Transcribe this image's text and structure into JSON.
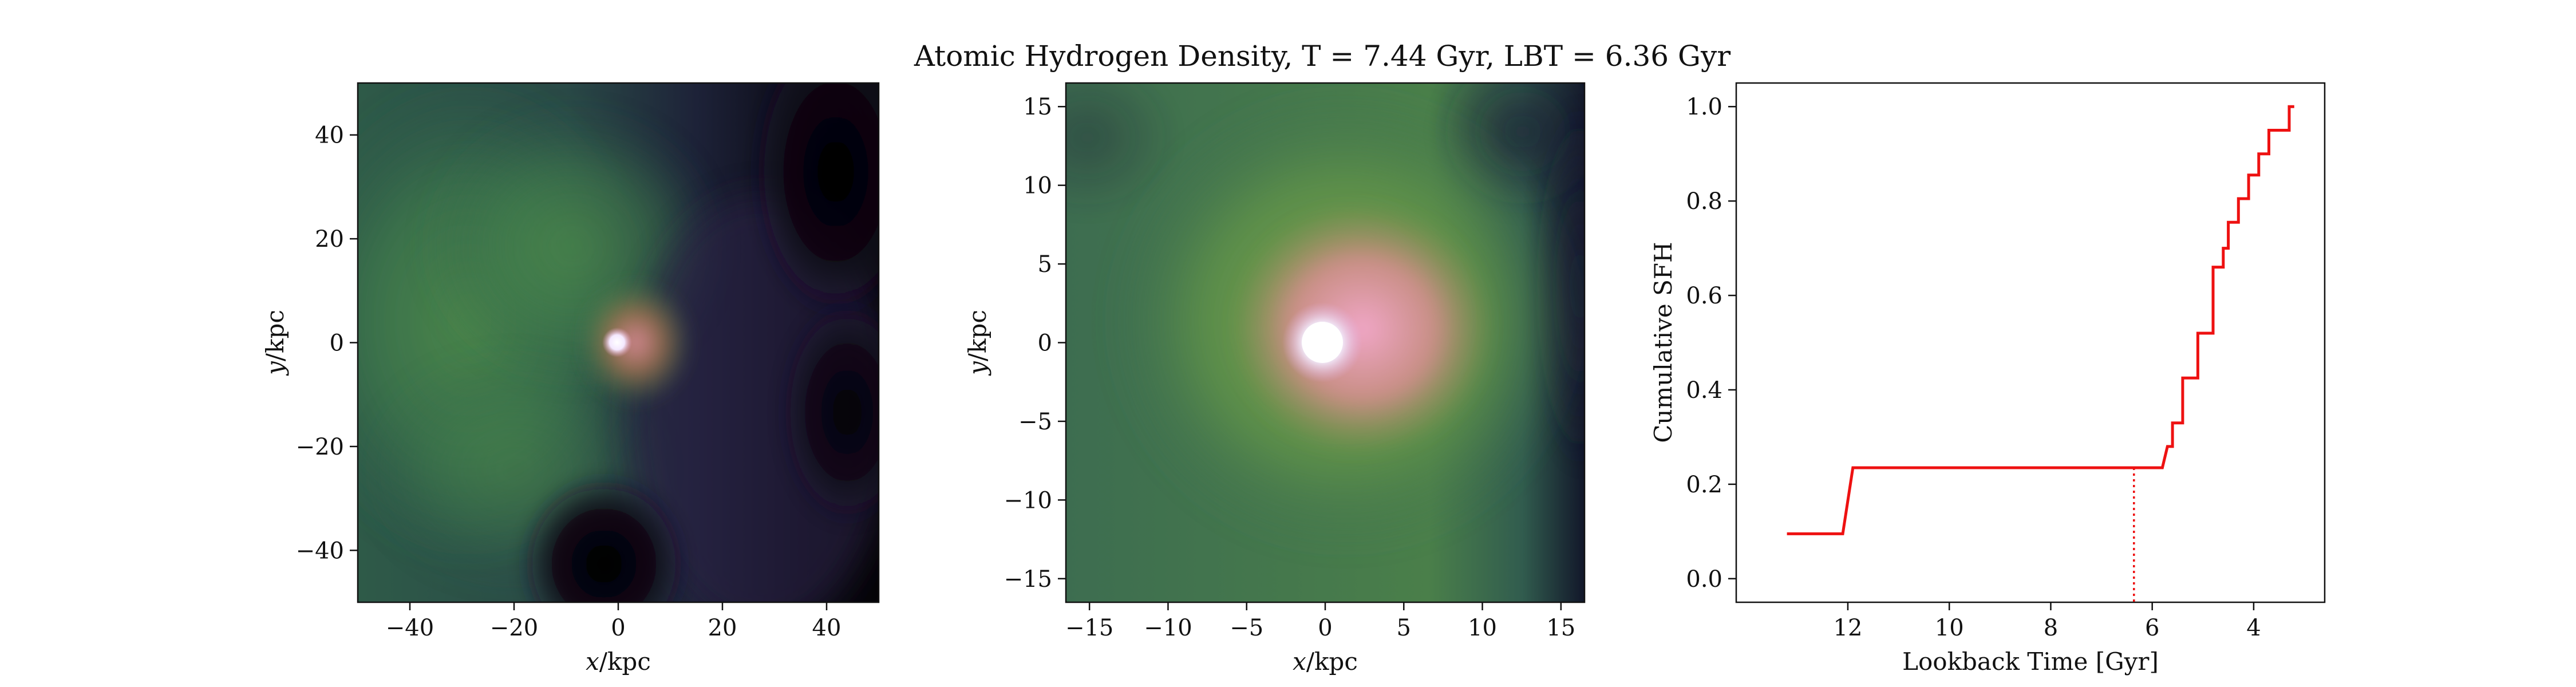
{
  "title": "Atomic Hydrogen Density, T = 7.44 Gyr, LBT = 6.36 Gyr",
  "colors": {
    "line": "#ee1111",
    "axis": "#111111"
  },
  "chart_data": [
    {
      "type": "heatmap",
      "panel": "left",
      "xlabel": "x/kpc",
      "ylabel": "y/kpc",
      "xlim": [
        -50,
        50
      ],
      "ylim": [
        -50,
        50
      ],
      "xticks": [
        -40,
        -20,
        0,
        20,
        40
      ],
      "yticks": [
        -40,
        -20,
        0,
        20,
        40
      ],
      "xtick_labels": [
        "−40",
        "−20",
        "0",
        "20",
        "40"
      ],
      "ytick_labels": [
        "−40",
        "−20",
        "0",
        "20",
        "40"
      ],
      "colormap": "cubehelix-like (black → purple → green → pink → white)",
      "features": [
        "bright compact core near (0, 0)",
        "green gas extending to the left",
        "dark void in lower-center and upper-right"
      ]
    },
    {
      "type": "heatmap",
      "panel": "middle",
      "xlabel": "x/kpc",
      "ylabel": "y/kpc",
      "xlim": [
        -16.5,
        16.5
      ],
      "ylim": [
        -16.5,
        16.5
      ],
      "xticks": [
        -15,
        -10,
        -5,
        0,
        5,
        10,
        15
      ],
      "yticks": [
        -15,
        -10,
        -5,
        0,
        5,
        10,
        15
      ],
      "xtick_labels": [
        "−15",
        "−10",
        "−5",
        "0",
        "5",
        "10",
        "15"
      ],
      "ytick_labels": [
        "−15",
        "−10",
        "−5",
        "0",
        "5",
        "10",
        "15"
      ],
      "colormap": "cubehelix-like (black → purple → green → pink → white)",
      "features": [
        "bright white core at (0, 0)",
        "pink halo",
        "green envelope"
      ]
    },
    {
      "type": "line",
      "panel": "right",
      "xlabel": "Lookback Time [Gyr]",
      "ylabel": "Cumulative SFH",
      "xlim": [
        14.2,
        2.6
      ],
      "ylim": [
        -0.05,
        1.05
      ],
      "xticks": [
        12,
        10,
        8,
        6,
        4
      ],
      "yticks": [
        0.0,
        0.2,
        0.4,
        0.6,
        0.8,
        1.0
      ],
      "xtick_labels": [
        "12",
        "10",
        "8",
        "6",
        "4"
      ],
      "ytick_labels": [
        "0.0",
        "0.2",
        "0.4",
        "0.6",
        "0.8",
        "1.0"
      ],
      "vline": {
        "x": 6.36,
        "style": "dotted",
        "color": "#ee1111"
      },
      "series": [
        {
          "x": [
            13.2,
            12.1,
            11.9,
            5.8,
            5.7,
            5.6,
            5.6,
            5.4,
            5.4,
            5.1,
            5.1,
            4.8,
            4.8,
            4.6,
            4.6,
            4.5,
            4.5,
            4.3,
            4.3,
            4.1,
            4.1,
            3.9,
            3.9,
            3.7,
            3.7,
            3.5,
            3.5,
            3.3,
            3.3,
            3.2
          ],
          "y": [
            0.095,
            0.095,
            0.235,
            0.235,
            0.28,
            0.28,
            0.33,
            0.33,
            0.425,
            0.425,
            0.52,
            0.52,
            0.66,
            0.66,
            0.7,
            0.7,
            0.755,
            0.755,
            0.805,
            0.805,
            0.855,
            0.855,
            0.9,
            0.9,
            0.95,
            0.95,
            0.95,
            0.95,
            1.0,
            1.0
          ]
        }
      ]
    }
  ]
}
